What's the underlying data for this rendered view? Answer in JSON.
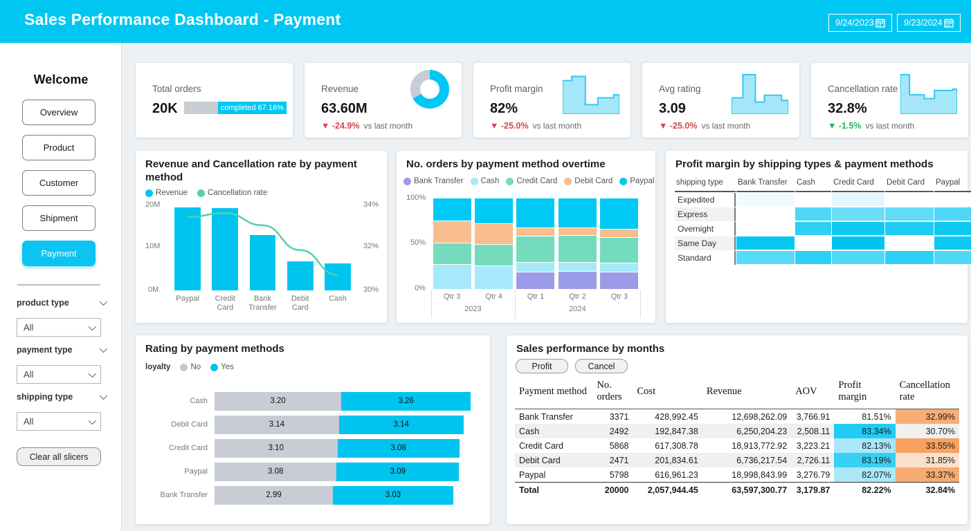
{
  "header": {
    "title": "Sales Performance Dashboard - Payment",
    "date_from": "9/24/2023",
    "date_to": "9/23/2024"
  },
  "sidebar": {
    "welcome": "Welcome",
    "nav": [
      {
        "label": "Overview",
        "active": false
      },
      {
        "label": "Product",
        "active": false
      },
      {
        "label": "Customer",
        "active": false
      },
      {
        "label": "Shipment",
        "active": false
      },
      {
        "label": "Payment",
        "active": true
      }
    ],
    "slicers": [
      {
        "label": "product type",
        "value": "All"
      },
      {
        "label": "payment type",
        "value": "All"
      },
      {
        "label": "shipping type",
        "value": "All"
      }
    ],
    "clear_button": "Clear all slicers"
  },
  "kpis": [
    {
      "label": "Total orders",
      "value": "20K",
      "progress_label": "completed 67.16%",
      "progress_pct": 67.16,
      "progress_color": "#00c7f2",
      "track_color": "#c9cdd4"
    },
    {
      "label": "Revenue",
      "value": "63.60M",
      "delta": "-24.9%",
      "delta_note": "vs last month",
      "delta_color": "#d9434f",
      "donut_pct": 67,
      "donut_color": "#00c7f2",
      "donut_rest_color": "#c7cdd5"
    },
    {
      "label": "Profit margin",
      "value": "82%",
      "delta": "-25.0%",
      "delta_note": "vs last month",
      "delta_color": "#d9434f",
      "spark": [
        [
          0,
          22
        ],
        [
          16,
          22
        ],
        [
          16,
          12
        ],
        [
          40,
          12
        ],
        [
          40,
          78
        ],
        [
          62,
          78
        ],
        [
          62,
          62
        ],
        [
          90,
          62
        ],
        [
          90,
          55
        ],
        [
          100,
          55
        ]
      ]
    },
    {
      "label": "Avg rating",
      "value": "3.09",
      "delta": "-25.0%",
      "delta_note": "vs last month",
      "delta_color": "#d9434f",
      "spark": [
        [
          0,
          62
        ],
        [
          20,
          62
        ],
        [
          20,
          8
        ],
        [
          42,
          8
        ],
        [
          42,
          72
        ],
        [
          58,
          72
        ],
        [
          58,
          56
        ],
        [
          88,
          56
        ],
        [
          88,
          68
        ],
        [
          100,
          68
        ]
      ]
    },
    {
      "label": "Cancellation rate",
      "value": "32.8%",
      "delta": "-1.5%",
      "delta_note": "vs last month",
      "delta_color": "#1fb356",
      "spark": [
        [
          0,
          8
        ],
        [
          16,
          8
        ],
        [
          16,
          55
        ],
        [
          42,
          55
        ],
        [
          42,
          64
        ],
        [
          60,
          64
        ],
        [
          60,
          45
        ],
        [
          92,
          45
        ],
        [
          92,
          42
        ],
        [
          100,
          42
        ]
      ]
    }
  ],
  "spark_style": {
    "fill": "#a5e7f9",
    "stroke": "#31c9f1"
  },
  "chart_data": [
    {
      "type": "bar+line",
      "title": "Revenue and Cancellation rate by payment method",
      "legend": [
        "Revenue",
        "Cancellation rate"
      ],
      "legend_colors": [
        "#00c4f0",
        "#57cfa7"
      ],
      "categories": [
        "Paypal",
        "Credit Card",
        "Bank Transfer",
        "Debit Card",
        "Cash"
      ],
      "revenue": [
        18998843.99,
        18913772.92,
        12698262.09,
        6736217.54,
        6250204.23
      ],
      "cancellation_rate": [
        33.37,
        33.55,
        32.99,
        31.85,
        30.7
      ],
      "y_left_ticks": [
        "20M",
        "10M",
        "0M"
      ],
      "y_left_max": 20000000,
      "y_right_ticks": [
        "34%",
        "32%",
        "30%"
      ],
      "y_right_range": [
        30,
        34
      ],
      "bar_color": "#00c4f0",
      "line_color": "#57cfa7"
    },
    {
      "type": "stacked-bar-100",
      "title": "No. orders by payment method overtime",
      "categories": [
        "Qtr 3",
        "Qtr 4",
        "Qtr 1",
        "Qtr 2",
        "Qtr 3"
      ],
      "year_groups": [
        {
          "label": "2023",
          "span": [
            0,
            1
          ]
        },
        {
          "label": "2024",
          "span": [
            2,
            4
          ]
        }
      ],
      "y_ticks": [
        "100%",
        "50%",
        "0%"
      ],
      "series": [
        {
          "name": "Bank Transfer",
          "color": "#9b9ce8",
          "values_pct": [
            0,
            0,
            19,
            20,
            19
          ]
        },
        {
          "name": "Cash",
          "color": "#a6e9fb",
          "values_pct": [
            27,
            26,
            10,
            9,
            9
          ]
        },
        {
          "name": "Credit Card",
          "color": "#74dcbc",
          "values_pct": [
            24,
            23,
            29,
            30,
            29
          ]
        },
        {
          "name": "Debit Card",
          "color": "#f8bd8d",
          "values_pct": [
            24,
            23,
            9,
            8,
            8
          ]
        },
        {
          "name": "Paypal",
          "color": "#00c9f5",
          "values_pct": [
            25,
            28,
            33,
            33,
            35
          ]
        }
      ]
    },
    {
      "type": "heatmap",
      "title": "Profit margin by shipping types & payment methods",
      "corner_label": "shipping type",
      "columns": [
        "Bank Transfer",
        "Cash",
        "Credit Card",
        "Debit Card",
        "Paypal"
      ],
      "rows": [
        "Expedited",
        "Express",
        "Overnight",
        "Same Day",
        "Standard"
      ],
      "row_label_bg": [
        "#ffffff",
        "#f2f2f2",
        "#ffffff",
        "#f2f2f2",
        "#ffffff"
      ],
      "cell_colors": [
        [
          "#f0fbfe",
          "#ffffff",
          "#e4f7fd",
          "#ffffff",
          "#ffffff"
        ],
        [
          "#ffffff",
          "#4fd7f7",
          "#6cdef8",
          "#63dcf8",
          "#4fd7f7"
        ],
        [
          "#ffffff",
          "#2ed1f5",
          "#0cc9f3",
          "#1bcdf4",
          "#0cc9f3"
        ],
        [
          "#06c7f2",
          "#ffffff",
          "#00c5f1",
          "#ffffff",
          "#0cc9f3"
        ],
        [
          "#58dbf7",
          "#2ed1f5",
          "#50d8f7",
          "#2ed1f5",
          "#50d8f7"
        ]
      ]
    },
    {
      "type": "stacked-bar-h",
      "title": "Rating by payment methods",
      "legend_title": "loyalty",
      "legend": [
        "No",
        "Yes"
      ],
      "legend_colors": [
        "#c3c8d1",
        "#00c4f0"
      ],
      "categories": [
        "Cash",
        "Debit Card",
        "Credit Card",
        "Paypal",
        "Bank Transfer"
      ],
      "series": [
        {
          "name": "No",
          "color": "#c8ccd4",
          "values": [
            "3.20",
            "3.14",
            "3.10",
            "3.08",
            "2.99"
          ]
        },
        {
          "name": "Yes",
          "color": "#00c4f0",
          "values": [
            "3.26",
            "3.14",
            "3.08",
            "3.09",
            "3.03"
          ]
        }
      ]
    },
    {
      "type": "table",
      "title": "Sales performance by months",
      "buttons": [
        "Profit",
        "Cancel"
      ],
      "columns": [
        "Payment method",
        "No. orders",
        "Cost",
        "Revenue",
        "AOV",
        "Profit margin",
        "Cancellation rate"
      ],
      "rows": [
        {
          "cells": [
            "Bank Transfer",
            "3371",
            "428,992.45",
            "12,698,262.09",
            "3,766.91",
            "81.51%",
            "32.99%"
          ],
          "profit_bg": "",
          "cancel_bg": "#f7ad76"
        },
        {
          "cells": [
            "Cash",
            "2492",
            "192,847.38",
            "6,250,204.23",
            "2,508.11",
            "83.34%",
            "30.70%"
          ],
          "profit_bg": "#22cbf3",
          "cancel_bg": ""
        },
        {
          "cells": [
            "Credit Card",
            "5868",
            "617,308.78",
            "18,913,772.92",
            "3,223.21",
            "82.13%",
            "33.55%"
          ],
          "profit_bg": "#a9e7f9",
          "cancel_bg": "#f7a261"
        },
        {
          "cells": [
            "Debit Card",
            "2471",
            "201,834.61",
            "6,736,217.54",
            "2,726.11",
            "83.19%",
            "31.85%"
          ],
          "profit_bg": "#38cff4",
          "cancel_bg": "#fbe1cd"
        },
        {
          "cells": [
            "Paypal",
            "5798",
            "616,961.23",
            "18,998,843.99",
            "3,276.79",
            "82.07%",
            "33.37%"
          ],
          "profit_bg": "#a9e7f9",
          "cancel_bg": "#f7ab72"
        }
      ],
      "total": [
        "Total",
        "20000",
        "2,057,944.45",
        "63,597,300.77",
        "3,179.87",
        "82.22%",
        "32.84%"
      ]
    }
  ]
}
